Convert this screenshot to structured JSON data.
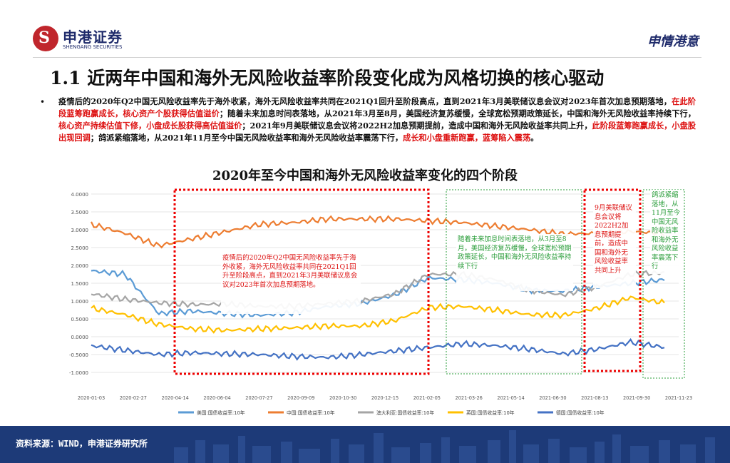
{
  "header": {
    "logo_symbol": "S",
    "logo_cn": "申港证券",
    "logo_en": "SHENGANG SECURITIES",
    "brand_right": "申情港意"
  },
  "title": "1.1 近两年中国和海外无风险收益率阶段变化成为风格切换的核心驱动",
  "bullet": "•",
  "paragraph": [
    {
      "text": "疫情后的2020年Q2中国无风险收益率先于海外收紧，海外无风险收益率共同在2021Q1回升至阶段高点，直到2021年3月美联储议息会议对2023年首次加息预期落地，",
      "highlight": false
    },
    {
      "text": "在此阶段蓝筹跑赢成长，核心资产个股获得估值溢价",
      "highlight": true
    },
    {
      "text": "；随着未来加息时间表落地，从2021年3月至8月，美国经济复苏缓慢，全球宽松预期政策延长，中国和海外无风险收益率持续下行，",
      "highlight": false
    },
    {
      "text": "核心资产持续估值下修，小盘成长股获得高估值溢价",
      "highlight": true
    },
    {
      "text": "；2021年9月美联储议息会议将2022H2加息预期提前，造成中国和海外无风险收益率共同上升，",
      "highlight": false
    },
    {
      "text": "此阶段蓝筹跑赢成长，小盘股出现回调",
      "highlight": true
    },
    {
      "text": "；鸽派紧缩落地，从2021年11月至今中国无风险收益率和海外无风险收益率震荡下行，",
      "highlight": false
    },
    {
      "text": "成长和小盘重新跑赢，蓝筹陷入震荡",
      "highlight": true
    },
    {
      "text": "。",
      "highlight": false
    }
  ],
  "chart_title": "2020年至今中国和海外无风险收益率变化的四个阶段",
  "annotations": [
    {
      "text": "疫情后的2020年Q2中国无风险收益率先于海外收紧，海外无风险收益率共同在2021Q1回升至阶段高点，直到2021年3月美联储议息会议对2023年首次加息预期落地。",
      "color": "#d11"
    },
    {
      "text": "随着未来加息时间表落地，从3月至8月，美国经济复苏缓慢，全球宽松预期政策延长，中国和海外无风险收益率持续下行",
      "color": "#2a9d3a"
    },
    {
      "text": "9月美联储议息会议将2022H2加息预期提前，造成中国和海外无风险收益率共同上升",
      "color": "#d11"
    },
    {
      "text": "鸽派紧缩落地，从11月至今中国无风险收益率和海外无风险收益率震荡下行",
      "color": "#2a9d3a"
    }
  ],
  "chart_data": {
    "type": "line",
    "title": "2020年至今中国和海外无风险收益率变化的四个阶段",
    "xlabel": "",
    "ylabel": "",
    "ylim": [
      -1.0,
      4.0
    ],
    "yticks": [
      "4.0000",
      "3.5000",
      "3.0000",
      "2.5000",
      "2.0000",
      "1.5000",
      "1.0000",
      "0.5000",
      "0.0000",
      "-0.5000",
      "-1.0000"
    ],
    "xticks": [
      "2020-01-03",
      "2020-02-27",
      "2020-04-14",
      "2020-06-04",
      "2020-07-27",
      "2020-09-09",
      "2020-10-30",
      "2020-12-15",
      "2021-02-05",
      "2021-03-26",
      "2021-05-14",
      "2021-06-30",
      "2021-08-13",
      "2021-09-30",
      "2021-11-23"
    ],
    "grid": true,
    "legend_position": "bottom",
    "series": [
      {
        "name": "美国:国债收益率:10年",
        "color": "#5b9bd5",
        "values": [
          1.85,
          1.75,
          0.65,
          0.72,
          0.65,
          0.6,
          0.67,
          0.85,
          0.93,
          1.17,
          1.65,
          1.6,
          1.5,
          1.3,
          1.28,
          1.4,
          1.5,
          1.6
        ]
      },
      {
        "name": "中国:国债收益率:10年",
        "color": "#ed7d31",
        "values": [
          3.15,
          2.9,
          2.55,
          2.75,
          2.95,
          3.15,
          3.2,
          3.3,
          3.3,
          3.3,
          3.25,
          3.2,
          3.1,
          3.0,
          2.88,
          2.9,
          2.95,
          2.9
        ]
      },
      {
        "name": "澳大利亚:国债收益率:10年",
        "color": "#a5a5a5",
        "values": [
          1.2,
          1.05,
          0.95,
          0.9,
          0.92,
          0.85,
          0.85,
          0.93,
          1.0,
          1.2,
          1.75,
          1.75,
          1.6,
          1.3,
          1.17,
          1.4,
          1.75,
          1.8
        ]
      },
      {
        "name": "英国:国债收益率:10年",
        "color": "#ffc000",
        "values": [
          0.8,
          0.62,
          0.35,
          0.22,
          0.18,
          0.22,
          0.25,
          0.3,
          0.3,
          0.45,
          0.82,
          0.85,
          0.75,
          0.62,
          0.6,
          0.8,
          1.1,
          0.95
        ]
      },
      {
        "name": "德国:国债收益率:10年",
        "color": "#4472c4",
        "values": [
          -0.25,
          -0.38,
          -0.5,
          -0.45,
          -0.48,
          -0.5,
          -0.55,
          -0.58,
          -0.5,
          -0.4,
          -0.3,
          -0.2,
          -0.25,
          -0.35,
          -0.48,
          -0.35,
          -0.15,
          -0.3
        ]
      }
    ]
  },
  "footer": {
    "source": "资料来源：WIND，申港证券研究所"
  }
}
